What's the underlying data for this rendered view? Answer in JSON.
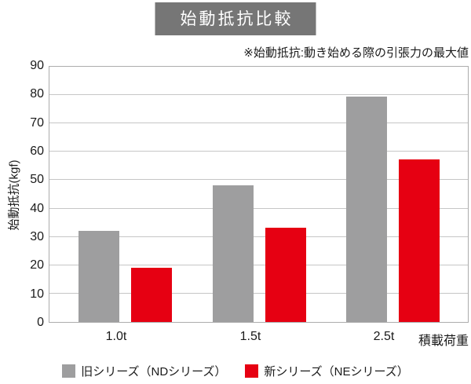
{
  "title": "始動抵抗比較",
  "note": "※始動抵抗:動き始める際の引張力の最大値",
  "chart_data": {
    "type": "bar",
    "title": "始動抵抗比較",
    "subtitle": "※始動抵抗:動き始める際の引張力の最大値",
    "ylabel": "始動抵抗(kgf)",
    "xlabel": "積載荷重",
    "ylim": [
      0,
      90
    ],
    "ytick_step": 10,
    "grid": true,
    "legend_position": "bottom",
    "categories": [
      "1.0t",
      "1.5t",
      "2.5t"
    ],
    "series": [
      {
        "name": "旧シリーズ（NDシリーズ）",
        "key": "nd-series",
        "color": "#9e9e9f",
        "values": [
          32,
          48,
          79
        ]
      },
      {
        "name": "新シリーズ（NEシリーズ）",
        "key": "ne-series",
        "color": "#e60012",
        "values": [
          19,
          33,
          57
        ]
      }
    ]
  },
  "colors": {
    "title_bg": "#767676",
    "title_text": "#ffffff",
    "grid": "#c6c6c6",
    "axis": "#acacac",
    "text": "#1a1a1a"
  }
}
